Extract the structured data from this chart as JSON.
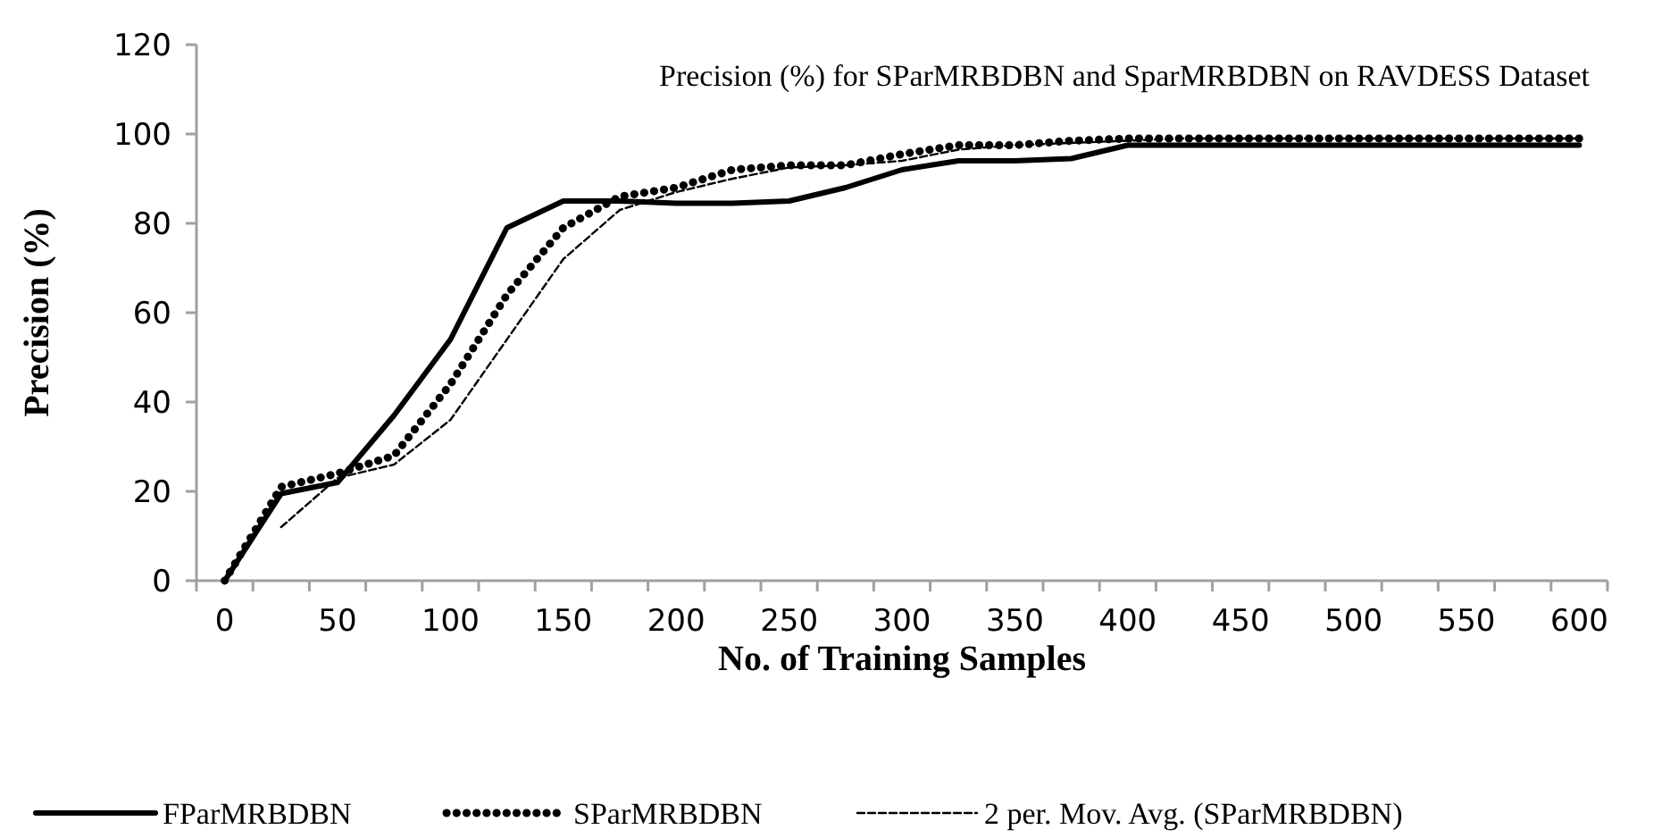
{
  "chart_data": {
    "type": "line",
    "title": "Precision (%) for SParMRBDBN and SparMRBDBN on RAVDESS Dataset",
    "xlabel": "No. of Training Samples",
    "ylabel": "Precision (%)",
    "categories": [
      "0",
      null,
      "50",
      null,
      "100",
      null,
      "150",
      null,
      "200",
      null,
      "250",
      null,
      "300",
      null,
      "350",
      null,
      "400",
      null,
      "450",
      null,
      "500",
      null,
      "550",
      null,
      "600"
    ],
    "series": [
      {
        "name": "FParMRBDBN",
        "color": "#000000",
        "line_style": "solid",
        "values": [
          0,
          19.5,
          22,
          37,
          54,
          79,
          85,
          85,
          84.5,
          84.5,
          85,
          88,
          92,
          94,
          94,
          94.5,
          97.5,
          97.5,
          97.5,
          97.5,
          97.5,
          97.5,
          97.5,
          97.5,
          97.5
        ]
      },
      {
        "name": "SParMRBDBN",
        "color": "#000000",
        "line_style": "dotted",
        "values": [
          0,
          21,
          24,
          28,
          44,
          64,
          79,
          86,
          88,
          92,
          93,
          93,
          95.5,
          97.5,
          97.5,
          98.5,
          99,
          99,
          99,
          99,
          99,
          99,
          99,
          99,
          99
        ]
      },
      {
        "name": "2 per. Mov. Avg. (SParMRBDBN)",
        "color": "#000000",
        "line_style": "dashed",
        "values": [
          null,
          12,
          23,
          26,
          36,
          54,
          72,
          83,
          87,
          90,
          92.5,
          93,
          94,
          96.5,
          97.5,
          98,
          98.5,
          99,
          99,
          99,
          99,
          99,
          99,
          99,
          99
        ]
      }
    ],
    "ylim": [
      0,
      120
    ],
    "yticks": [
      0,
      20,
      40,
      60,
      80,
      100,
      120
    ],
    "grid": false,
    "legend": "bottom"
  }
}
